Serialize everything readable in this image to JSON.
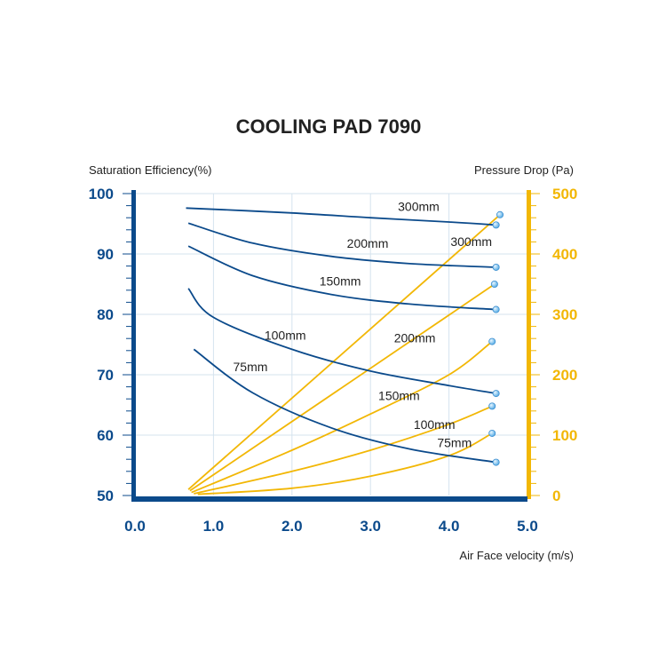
{
  "chart_data": {
    "type": "line",
    "title": "COOLING PAD 7090",
    "xlabel": "Air Face velocity (m/s)",
    "ylabel_left": "Saturation Efficiency(%)",
    "ylabel_right": "Pressure Drop (Pa)",
    "xlim": [
      0,
      5
    ],
    "ylim_left": [
      50,
      100
    ],
    "ylim_right": [
      0,
      500
    ],
    "x_ticks": [
      "0.0",
      "1.0",
      "2.0",
      "3.0",
      "4.0",
      "5.0"
    ],
    "y_ticks_left": [
      "50",
      "60",
      "70",
      "80",
      "90",
      "100"
    ],
    "y_ticks_right": [
      "0",
      "100",
      "200",
      "300",
      "400",
      "500"
    ],
    "grid": true,
    "colors": {
      "efficiency": "#0b4a8b",
      "pressure": "#f2b705",
      "axis_left": "#0b4a8b",
      "axis_right": "#f2b705"
    },
    "efficiency_series": [
      {
        "name": "300mm",
        "x": [
          0.65,
          2.0,
          3.0,
          4.0,
          4.6
        ],
        "y": [
          97.6,
          96.8,
          96.0,
          95.3,
          94.8
        ]
      },
      {
        "name": "200mm",
        "x": [
          0.68,
          1.5,
          2.5,
          3.5,
          4.6
        ],
        "y": [
          95.1,
          91.8,
          89.6,
          88.4,
          87.8
        ]
      },
      {
        "name": "150mm",
        "x": [
          0.68,
          1.5,
          2.5,
          3.5,
          4.6
        ],
        "y": [
          91.3,
          86.4,
          83.3,
          81.7,
          80.8
        ]
      },
      {
        "name": "100mm",
        "x": [
          0.68,
          1.0,
          2.0,
          3.0,
          4.0,
          4.6
        ],
        "y": [
          84.3,
          79.5,
          74.2,
          70.6,
          68.2,
          66.9
        ]
      },
      {
        "name": "75mm",
        "x": [
          0.75,
          1.5,
          2.5,
          3.5,
          4.6
        ],
        "y": [
          74.2,
          67.0,
          61.2,
          57.7,
          55.5
        ]
      }
    ],
    "pressure_series": [
      {
        "name": "300mm",
        "x": [
          0.68,
          4.65
        ],
        "y": [
          10,
          465
        ]
      },
      {
        "name": "200mm",
        "x": [
          0.7,
          4.58
        ],
        "y": [
          8,
          350
        ]
      },
      {
        "name": "150mm",
        "x": [
          0.72,
          2.0,
          3.0,
          4.0,
          4.55
        ],
        "y": [
          5,
          75,
          135,
          200,
          255
        ]
      },
      {
        "name": "100mm",
        "x": [
          0.75,
          2.0,
          3.0,
          4.0,
          4.55
        ],
        "y": [
          3,
          40,
          75,
          118,
          148
        ]
      },
      {
        "name": "75mm",
        "x": [
          0.8,
          2.0,
          3.0,
          4.0,
          4.55
        ],
        "y": [
          2,
          12,
          32,
          66,
          103
        ]
      }
    ],
    "efficiency_labels": [
      {
        "text": "300mm",
        "x": 3.35,
        "y": 97.1
      },
      {
        "text": "200mm",
        "x": 2.7,
        "y": 91.0
      },
      {
        "text": "150mm",
        "x": 2.35,
        "y": 84.8
      },
      {
        "text": "100mm",
        "x": 1.65,
        "y": 75.8
      },
      {
        "text": "75mm",
        "x": 1.25,
        "y": 70.6
      }
    ],
    "pressure_labels": [
      {
        "text": "300mm",
        "x": 4.02,
        "y": 413
      },
      {
        "text": "200mm",
        "x": 3.3,
        "y": 254
      },
      {
        "text": "150mm",
        "x": 3.1,
        "y": 158
      },
      {
        "text": "100mm",
        "x": 3.55,
        "y": 110
      },
      {
        "text": "75mm",
        "x": 3.85,
        "y": 80
      }
    ]
  }
}
